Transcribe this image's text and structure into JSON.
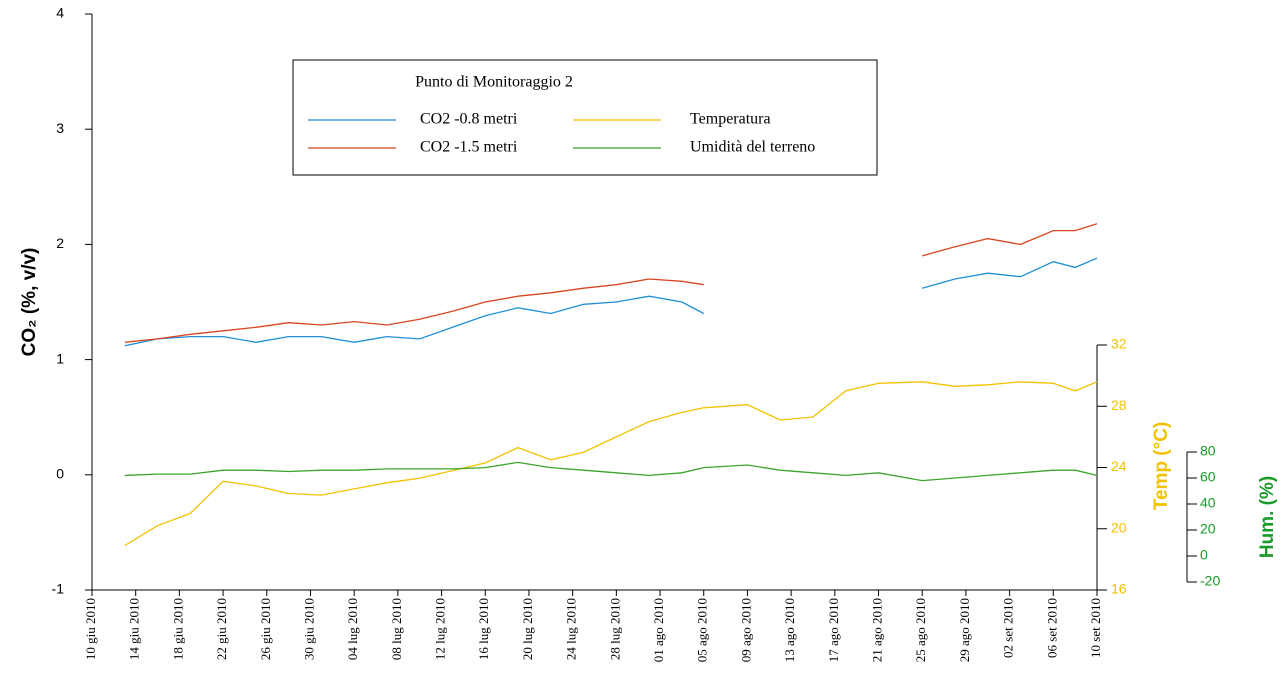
{
  "chart_data": {
    "type": "line",
    "legend_title": "Punto di Monitoraggio 2",
    "ylabel": "CO₂ (%, v/v)",
    "y2label": "Temp (°C)",
    "y3label": "Hum. (%)",
    "x": [
      "2010-06-13",
      "2010-06-16",
      "2010-06-19",
      "2010-06-22",
      "2010-06-25",
      "2010-06-28",
      "2010-07-01",
      "2010-07-04",
      "2010-07-07",
      "2010-07-10",
      "2010-07-13",
      "2010-07-16",
      "2010-07-19",
      "2010-07-22",
      "2010-07-25",
      "2010-07-28",
      "2010-07-31",
      "2010-08-03",
      "2010-08-05",
      "2010-08-09",
      "2010-08-12",
      "2010-08-15",
      "2010-08-18",
      "2010-08-21",
      "2010-08-25",
      "2010-08-28",
      "2010-08-31",
      "2010-09-03",
      "2010-09-06",
      "2010-09-08",
      "2010-09-10"
    ],
    "xlim": [
      "2010-06-10",
      "2010-09-10"
    ],
    "xticks": [
      {
        "value": "2010-06-10",
        "label": "10 giu 2010"
      },
      {
        "value": "2010-06-14",
        "label": "14 giu 2010"
      },
      {
        "value": "2010-06-18",
        "label": "18 giu 2010"
      },
      {
        "value": "2010-06-22",
        "label": "22 giu 2010"
      },
      {
        "value": "2010-06-26",
        "label": "26 giu 2010"
      },
      {
        "value": "2010-06-30",
        "label": "30 giu 2010"
      },
      {
        "value": "2010-07-04",
        "label": "04 lug 2010"
      },
      {
        "value": "2010-07-08",
        "label": "08 lug 2010"
      },
      {
        "value": "2010-07-12",
        "label": "12 lug 2010"
      },
      {
        "value": "2010-07-16",
        "label": "16 lug 2010"
      },
      {
        "value": "2010-07-20",
        "label": "20 lug 2010"
      },
      {
        "value": "2010-07-24",
        "label": "24 lug 2010"
      },
      {
        "value": "2010-07-28",
        "label": "28 lug 2010"
      },
      {
        "value": "2010-08-01",
        "label": "01 ago 2010"
      },
      {
        "value": "2010-08-05",
        "label": "05 ago 2010"
      },
      {
        "value": "2010-08-09",
        "label": "09 ago 2010"
      },
      {
        "value": "2010-08-13",
        "label": "13 ago 2010"
      },
      {
        "value": "2010-08-17",
        "label": "17 ago 2010"
      },
      {
        "value": "2010-08-21",
        "label": "21 ago 2010"
      },
      {
        "value": "2010-08-25",
        "label": "25 ago 2010"
      },
      {
        "value": "2010-08-29",
        "label": "29 ago 2010"
      },
      {
        "value": "2010-09-02",
        "label": "02 set 2010"
      },
      {
        "value": "2010-09-06",
        "label": "06 set 2010"
      },
      {
        "value": "2010-09-10",
        "label": "10 set 2010"
      }
    ],
    "ylim": [
      -1,
      4
    ],
    "yticks": [
      -1,
      0,
      1,
      2,
      3,
      4
    ],
    "y2lim": [
      16,
      32
    ],
    "y2ticks": [
      16,
      20,
      24,
      28,
      32
    ],
    "y3lim": [
      -20,
      80
    ],
    "y3ticks": [
      -20,
      0,
      20,
      40,
      60,
      80
    ],
    "series": [
      {
        "name": "CO2 -0.8 metri",
        "color": "#1f8fd6",
        "axis": "y",
        "values": [
          1.12,
          1.18,
          1.2,
          1.2,
          1.15,
          1.2,
          1.2,
          1.15,
          1.2,
          1.18,
          1.28,
          1.38,
          1.45,
          1.4,
          1.48,
          1.5,
          1.55,
          1.5,
          1.4,
          null,
          null,
          null,
          null,
          null,
          1.62,
          1.7,
          1.75,
          1.72,
          1.85,
          1.8,
          1.88
        ]
      },
      {
        "name": "CO2 -1.5 metri",
        "color": "#d9461e",
        "axis": "y",
        "values": [
          1.15,
          1.18,
          1.22,
          1.25,
          1.28,
          1.32,
          1.3,
          1.33,
          1.3,
          1.35,
          1.42,
          1.5,
          1.55,
          1.58,
          1.62,
          1.65,
          1.7,
          1.68,
          1.65,
          null,
          null,
          null,
          null,
          null,
          1.9,
          1.98,
          2.05,
          2.0,
          2.12,
          2.12,
          2.18
        ]
      },
      {
        "name": "Temperatura",
        "color": "#f2c200",
        "axis": "y2",
        "values": [
          18.9,
          20.2,
          21,
          23.1,
          22.8,
          22.3,
          22.2,
          22.6,
          23,
          23.3,
          23.8,
          24.3,
          25.3,
          24.5,
          25,
          26,
          27,
          27.6,
          27.9,
          28.1,
          27.1,
          27.3,
          29,
          29.5,
          29.6,
          29.3,
          29.4,
          29.6,
          29.5,
          29,
          29.6
        ]
      },
      {
        "name": "Umidità del terreno",
        "color": "#3aa52a",
        "axis": "y3",
        "values": [
          62,
          63,
          63,
          66,
          66,
          65,
          66,
          66,
          67,
          67,
          67,
          68,
          72,
          68,
          66,
          64,
          62,
          64,
          68,
          70,
          66,
          64,
          62,
          64,
          58,
          60,
          62,
          64,
          66,
          66,
          62
        ]
      }
    ]
  }
}
